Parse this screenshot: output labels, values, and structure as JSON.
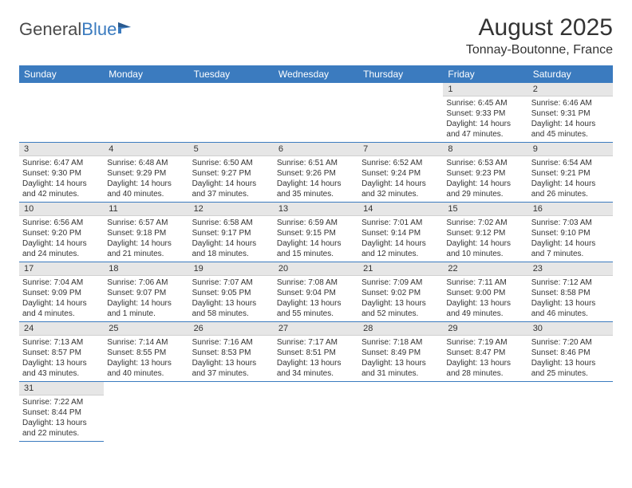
{
  "logo": {
    "part1": "General",
    "part2": "Blue"
  },
  "title": "August 2025",
  "subtitle": "Tonnay-Boutonne, France",
  "header_bg": "#3b7bbf",
  "header_fg": "#ffffff",
  "daynum_bg": "#e6e6e6",
  "row_border": "#3b7bbf",
  "weekdays": [
    "Sunday",
    "Monday",
    "Tuesday",
    "Wednesday",
    "Thursday",
    "Friday",
    "Saturday"
  ],
  "weeks": [
    [
      null,
      null,
      null,
      null,
      null,
      {
        "num": "1",
        "sunrise": "Sunrise: 6:45 AM",
        "sunset": "Sunset: 9:33 PM",
        "daylight": "Daylight: 14 hours and 47 minutes."
      },
      {
        "num": "2",
        "sunrise": "Sunrise: 6:46 AM",
        "sunset": "Sunset: 9:31 PM",
        "daylight": "Daylight: 14 hours and 45 minutes."
      }
    ],
    [
      {
        "num": "3",
        "sunrise": "Sunrise: 6:47 AM",
        "sunset": "Sunset: 9:30 PM",
        "daylight": "Daylight: 14 hours and 42 minutes."
      },
      {
        "num": "4",
        "sunrise": "Sunrise: 6:48 AM",
        "sunset": "Sunset: 9:29 PM",
        "daylight": "Daylight: 14 hours and 40 minutes."
      },
      {
        "num": "5",
        "sunrise": "Sunrise: 6:50 AM",
        "sunset": "Sunset: 9:27 PM",
        "daylight": "Daylight: 14 hours and 37 minutes."
      },
      {
        "num": "6",
        "sunrise": "Sunrise: 6:51 AM",
        "sunset": "Sunset: 9:26 PM",
        "daylight": "Daylight: 14 hours and 35 minutes."
      },
      {
        "num": "7",
        "sunrise": "Sunrise: 6:52 AM",
        "sunset": "Sunset: 9:24 PM",
        "daylight": "Daylight: 14 hours and 32 minutes."
      },
      {
        "num": "8",
        "sunrise": "Sunrise: 6:53 AM",
        "sunset": "Sunset: 9:23 PM",
        "daylight": "Daylight: 14 hours and 29 minutes."
      },
      {
        "num": "9",
        "sunrise": "Sunrise: 6:54 AM",
        "sunset": "Sunset: 9:21 PM",
        "daylight": "Daylight: 14 hours and 26 minutes."
      }
    ],
    [
      {
        "num": "10",
        "sunrise": "Sunrise: 6:56 AM",
        "sunset": "Sunset: 9:20 PM",
        "daylight": "Daylight: 14 hours and 24 minutes."
      },
      {
        "num": "11",
        "sunrise": "Sunrise: 6:57 AM",
        "sunset": "Sunset: 9:18 PM",
        "daylight": "Daylight: 14 hours and 21 minutes."
      },
      {
        "num": "12",
        "sunrise": "Sunrise: 6:58 AM",
        "sunset": "Sunset: 9:17 PM",
        "daylight": "Daylight: 14 hours and 18 minutes."
      },
      {
        "num": "13",
        "sunrise": "Sunrise: 6:59 AM",
        "sunset": "Sunset: 9:15 PM",
        "daylight": "Daylight: 14 hours and 15 minutes."
      },
      {
        "num": "14",
        "sunrise": "Sunrise: 7:01 AM",
        "sunset": "Sunset: 9:14 PM",
        "daylight": "Daylight: 14 hours and 12 minutes."
      },
      {
        "num": "15",
        "sunrise": "Sunrise: 7:02 AM",
        "sunset": "Sunset: 9:12 PM",
        "daylight": "Daylight: 14 hours and 10 minutes."
      },
      {
        "num": "16",
        "sunrise": "Sunrise: 7:03 AM",
        "sunset": "Sunset: 9:10 PM",
        "daylight": "Daylight: 14 hours and 7 minutes."
      }
    ],
    [
      {
        "num": "17",
        "sunrise": "Sunrise: 7:04 AM",
        "sunset": "Sunset: 9:09 PM",
        "daylight": "Daylight: 14 hours and 4 minutes."
      },
      {
        "num": "18",
        "sunrise": "Sunrise: 7:06 AM",
        "sunset": "Sunset: 9:07 PM",
        "daylight": "Daylight: 14 hours and 1 minute."
      },
      {
        "num": "19",
        "sunrise": "Sunrise: 7:07 AM",
        "sunset": "Sunset: 9:05 PM",
        "daylight": "Daylight: 13 hours and 58 minutes."
      },
      {
        "num": "20",
        "sunrise": "Sunrise: 7:08 AM",
        "sunset": "Sunset: 9:04 PM",
        "daylight": "Daylight: 13 hours and 55 minutes."
      },
      {
        "num": "21",
        "sunrise": "Sunrise: 7:09 AM",
        "sunset": "Sunset: 9:02 PM",
        "daylight": "Daylight: 13 hours and 52 minutes."
      },
      {
        "num": "22",
        "sunrise": "Sunrise: 7:11 AM",
        "sunset": "Sunset: 9:00 PM",
        "daylight": "Daylight: 13 hours and 49 minutes."
      },
      {
        "num": "23",
        "sunrise": "Sunrise: 7:12 AM",
        "sunset": "Sunset: 8:58 PM",
        "daylight": "Daylight: 13 hours and 46 minutes."
      }
    ],
    [
      {
        "num": "24",
        "sunrise": "Sunrise: 7:13 AM",
        "sunset": "Sunset: 8:57 PM",
        "daylight": "Daylight: 13 hours and 43 minutes."
      },
      {
        "num": "25",
        "sunrise": "Sunrise: 7:14 AM",
        "sunset": "Sunset: 8:55 PM",
        "daylight": "Daylight: 13 hours and 40 minutes."
      },
      {
        "num": "26",
        "sunrise": "Sunrise: 7:16 AM",
        "sunset": "Sunset: 8:53 PM",
        "daylight": "Daylight: 13 hours and 37 minutes."
      },
      {
        "num": "27",
        "sunrise": "Sunrise: 7:17 AM",
        "sunset": "Sunset: 8:51 PM",
        "daylight": "Daylight: 13 hours and 34 minutes."
      },
      {
        "num": "28",
        "sunrise": "Sunrise: 7:18 AM",
        "sunset": "Sunset: 8:49 PM",
        "daylight": "Daylight: 13 hours and 31 minutes."
      },
      {
        "num": "29",
        "sunrise": "Sunrise: 7:19 AM",
        "sunset": "Sunset: 8:47 PM",
        "daylight": "Daylight: 13 hours and 28 minutes."
      },
      {
        "num": "30",
        "sunrise": "Sunrise: 7:20 AM",
        "sunset": "Sunset: 8:46 PM",
        "daylight": "Daylight: 13 hours and 25 minutes."
      }
    ],
    [
      {
        "num": "31",
        "sunrise": "Sunrise: 7:22 AM",
        "sunset": "Sunset: 8:44 PM",
        "daylight": "Daylight: 13 hours and 22 minutes."
      },
      null,
      null,
      null,
      null,
      null,
      null
    ]
  ]
}
